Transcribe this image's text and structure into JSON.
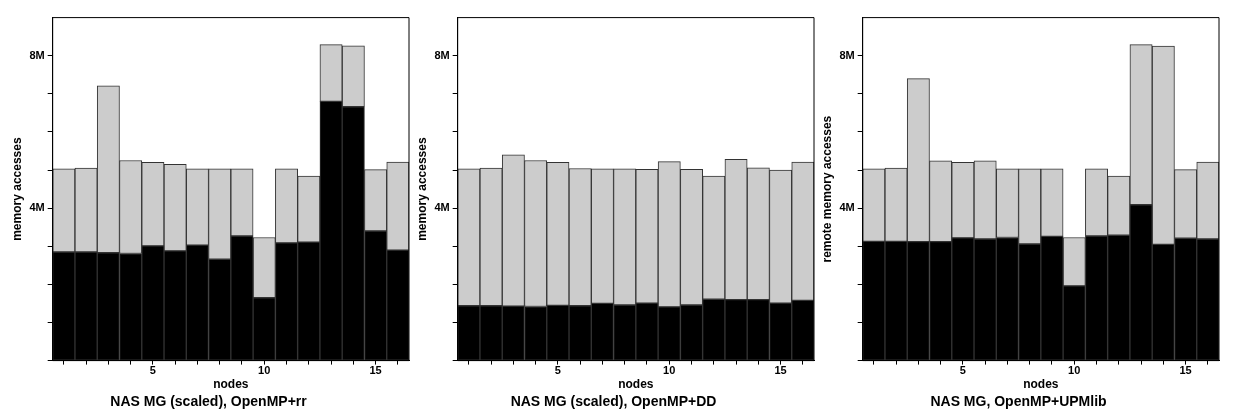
{
  "chart_data": [
    {
      "type": "bar",
      "title": "NAS MG (scaled), OpenMP+rr",
      "xlabel": "nodes",
      "ylabel": "memory accesses",
      "stacked": true,
      "legend": false,
      "categories": [
        null,
        null,
        null,
        null,
        "5",
        null,
        null,
        null,
        null,
        "10",
        null,
        null,
        null,
        null,
        "15",
        null
      ],
      "ylim": [
        0,
        9
      ],
      "yticks": [
        {
          "value": 0,
          "label": null
        },
        {
          "value": 1,
          "label": null
        },
        {
          "value": 2,
          "label": null
        },
        {
          "value": 3,
          "label": null
        },
        {
          "value": 4,
          "label": "4M"
        },
        {
          "value": 5,
          "label": null
        },
        {
          "value": 6,
          "label": null
        },
        {
          "value": 7,
          "label": null
        },
        {
          "value": 8,
          "label": "8M"
        }
      ],
      "series": [
        {
          "color": "#000000",
          "values": [
            2.85,
            2.85,
            2.83,
            2.81,
            3.01,
            2.88,
            3.03,
            2.66,
            3.27,
            1.65,
            3.09,
            3.11,
            6.8,
            6.66,
            3.4,
            2.9
          ]
        },
        {
          "color": "#cccccc",
          "values": [
            2.18,
            2.2,
            4.38,
            2.44,
            2.19,
            2.27,
            2.0,
            2.37,
            1.76,
            1.58,
            1.94,
            1.73,
            1.49,
            1.6,
            1.61,
            2.31
          ]
        }
      ]
    },
    {
      "type": "bar",
      "title": "NAS MG (scaled), OpenMP+DD",
      "xlabel": "nodes",
      "ylabel": "memory accesses",
      "stacked": true,
      "legend": false,
      "categories": [
        null,
        null,
        null,
        null,
        "5",
        null,
        null,
        null,
        null,
        "10",
        null,
        null,
        null,
        null,
        "15",
        null
      ],
      "ylim": [
        0,
        9
      ],
      "yticks": [
        {
          "value": 0,
          "label": null
        },
        {
          "value": 1,
          "label": null
        },
        {
          "value": 2,
          "label": null
        },
        {
          "value": 3,
          "label": null
        },
        {
          "value": 4,
          "label": "4M"
        },
        {
          "value": 5,
          "label": null
        },
        {
          "value": 6,
          "label": null
        },
        {
          "value": 7,
          "label": null
        },
        {
          "value": 8,
          "label": "8M"
        }
      ],
      "series": [
        {
          "color": "#000000",
          "values": [
            1.44,
            1.44,
            1.43,
            1.42,
            1.45,
            1.44,
            1.5,
            1.46,
            1.51,
            1.41,
            1.46,
            1.61,
            1.6,
            1.6,
            1.51,
            1.58
          ]
        },
        {
          "color": "#cccccc",
          "values": [
            3.59,
            3.61,
            3.97,
            3.83,
            3.75,
            3.6,
            3.53,
            3.57,
            3.51,
            3.81,
            3.56,
            3.23,
            3.68,
            3.46,
            3.49,
            3.63
          ]
        }
      ]
    },
    {
      "type": "bar",
      "title": "NAS MG, OpenMP+UPMlib",
      "xlabel": "nodes",
      "ylabel": "remote memory accesses",
      "stacked": true,
      "legend": false,
      "categories": [
        null,
        null,
        null,
        null,
        "5",
        null,
        null,
        null,
        null,
        "10",
        null,
        null,
        null,
        null,
        "15",
        null
      ],
      "ylim": [
        0,
        9
      ],
      "yticks": [
        {
          "value": 0,
          "label": null
        },
        {
          "value": 1,
          "label": null
        },
        {
          "value": 2,
          "label": null
        },
        {
          "value": 3,
          "label": null
        },
        {
          "value": 4,
          "label": "4M"
        },
        {
          "value": 5,
          "label": null
        },
        {
          "value": 6,
          "label": null
        },
        {
          "value": 7,
          "label": null
        },
        {
          "value": 8,
          "label": "8M"
        }
      ],
      "series": [
        {
          "color": "#000000",
          "values": [
            3.13,
            3.13,
            3.12,
            3.12,
            3.22,
            3.19,
            3.23,
            3.06,
            3.26,
            1.96,
            3.27,
            3.29,
            4.09,
            3.05,
            3.21,
            3.19
          ]
        },
        {
          "color": "#cccccc",
          "values": [
            1.9,
            1.92,
            4.28,
            2.12,
            1.98,
            2.05,
            1.8,
            1.97,
            1.77,
            1.27,
            1.76,
            1.55,
            4.2,
            5.2,
            1.8,
            2.02
          ]
        }
      ]
    }
  ]
}
